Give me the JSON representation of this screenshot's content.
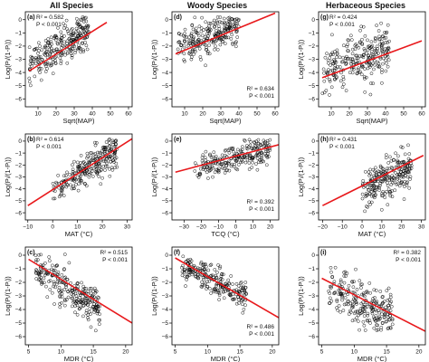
{
  "column_titles": [
    "All Species",
    "Woody Species",
    "Herbaceous Species"
  ],
  "chart_data": [
    {
      "id": "a",
      "type": "scatter",
      "panel_label": "(a)",
      "title": "All Species",
      "xlabel": "Sqrt(MAP)",
      "ylabel": "Log(Pᵢ/(1-Pᵢ))",
      "xlim": [
        3,
        62
      ],
      "ylim": [
        -6.6,
        0.6
      ],
      "xticks": [
        10,
        20,
        30,
        40,
        50,
        60
      ],
      "yticks": [
        0,
        -1,
        -2,
        -3,
        -4,
        -5,
        -6
      ],
      "stats": {
        "r2": "R² = 0.582",
        "p": "P < 0.001",
        "position": "top-left"
      },
      "fit": {
        "x": [
          5,
          48
        ],
        "y": [
          -3.9,
          -0.2
        ]
      },
      "cloud": {
        "x_range": [
          5,
          38
        ],
        "y_at_xmin": -3.6,
        "y_at_xmax": -0.6,
        "spread": 0.7,
        "floor": -6.0,
        "n": 260
      }
    },
    {
      "id": "d",
      "type": "scatter",
      "panel_label": "(d)",
      "title": "Woody Species",
      "xlabel": "Sqrt(MAP)",
      "ylabel": "Log(Pᵢ/(1-Pᵢ))",
      "xlim": [
        3,
        62
      ],
      "ylim": [
        -6.6,
        0.6
      ],
      "xticks": [
        10,
        20,
        30,
        40,
        50,
        60
      ],
      "yticks": [
        0,
        -1,
        -2,
        -3,
        -4,
        -5,
        -6
      ],
      "stats": {
        "r2": "R² = 0.634",
        "p": "P < 0.001",
        "position": "bottom-right"
      },
      "fit": {
        "x": [
          5,
          60
        ],
        "y": [
          -2.6,
          0.5
        ]
      },
      "cloud": {
        "x_range": [
          6,
          40
        ],
        "y_at_xmin": -2.3,
        "y_at_xmax": -0.4,
        "spread": 0.6,
        "floor": -4.0,
        "n": 240
      }
    },
    {
      "id": "g",
      "type": "scatter",
      "panel_label": "(g)",
      "title": "Herbaceous Species",
      "xlabel": "Sqrt(MAP)",
      "ylabel": "Log(Pᵢ/(1-Pᵢ))",
      "xlim": [
        3,
        62
      ],
      "ylim": [
        -6.6,
        0.6
      ],
      "xticks": [
        10,
        20,
        30,
        40,
        50,
        60
      ],
      "yticks": [
        0,
        -1,
        -2,
        -3,
        -4,
        -5,
        -6
      ],
      "stats": {
        "r2": "R² = 0.424",
        "p": "P < 0.001",
        "position": "top-left"
      },
      "fit": {
        "x": [
          5,
          60
        ],
        "y": [
          -4.4,
          -1.6
        ]
      },
      "cloud": {
        "x_range": [
          5,
          42
        ],
        "y_at_xmin": -4.2,
        "y_at_xmax": -2.2,
        "spread": 0.9,
        "floor": -5.8,
        "n": 260
      }
    },
    {
      "id": "b",
      "type": "scatter",
      "panel_label": "(b)",
      "title": "",
      "xlabel": "MAT (°C)",
      "ylabel": "Log(Pᵢ/(1-Pᵢ))",
      "xlim": [
        -11,
        32
      ],
      "ylim": [
        -6.6,
        0.6
      ],
      "xticks": [
        -10,
        0,
        10,
        20,
        30
      ],
      "yticks": [
        0,
        -1,
        -2,
        -3,
        -4,
        -5,
        -6
      ],
      "stats": {
        "r2": "R² = 0.614",
        "p": "P < 0.001",
        "position": "top-left"
      },
      "fit": {
        "x": [
          -10,
          32
        ],
        "y": [
          -5.4,
          0.2
        ]
      },
      "cloud": {
        "x_range": [
          0,
          26
        ],
        "y_at_xmin": -4.2,
        "y_at_xmax": -0.7,
        "spread": 0.7,
        "floor": -6.0,
        "n": 260
      }
    },
    {
      "id": "e",
      "type": "scatter",
      "panel_label": "(e)",
      "title": "",
      "xlabel": "TCQ (°C)",
      "ylabel": "Log(Pᵢ/(1-Pᵢ))",
      "xlim": [
        -37,
        25
      ],
      "ylim": [
        -6.6,
        0.6
      ],
      "xticks": [
        -30,
        -20,
        -10,
        0,
        10,
        20
      ],
      "yticks": [
        0,
        -1,
        -2,
        -3,
        -4,
        -5,
        -6
      ],
      "stats": {
        "r2": "R² = 0.392",
        "p": "P < 0.001",
        "position": "bottom-right"
      },
      "fit": {
        "x": [
          -35,
          25
        ],
        "y": [
          -2.6,
          -0.3
        ]
      },
      "cloud": {
        "x_range": [
          -24,
          20
        ],
        "y_at_xmin": -2.3,
        "y_at_xmax": -0.7,
        "spread": 0.55,
        "floor": -3.2,
        "n": 240
      }
    },
    {
      "id": "h",
      "type": "scatter",
      "panel_label": "(h)",
      "title": "",
      "xlabel": "MAT (°C)",
      "ylabel": "Log(Pᵢ/(1-Pᵢ))",
      "xlim": [
        -22,
        32
      ],
      "ylim": [
        -6.6,
        0.6
      ],
      "xticks": [
        -20,
        -10,
        0,
        10,
        20,
        30
      ],
      "yticks": [
        0,
        -1,
        -2,
        -3,
        -4,
        -5,
        -6
      ],
      "stats": {
        "r2": "R² = 0.431",
        "p": "P < 0.001",
        "position": "top-left"
      },
      "fit": {
        "x": [
          -20,
          31
        ],
        "y": [
          -5.4,
          -1.2
        ]
      },
      "cloud": {
        "x_range": [
          0,
          25
        ],
        "y_at_xmin": -4.0,
        "y_at_xmax": -2.2,
        "spread": 0.8,
        "floor": -6.0,
        "n": 240
      }
    },
    {
      "id": "c",
      "type": "scatter",
      "panel_label": "(c)",
      "title": "",
      "xlabel": "MDR (°C)",
      "ylabel": "Log(Pᵢ/(1-Pᵢ))",
      "xlim": [
        4.5,
        21
      ],
      "ylim": [
        -6.6,
        0.6
      ],
      "xticks": [
        5,
        10,
        15,
        20
      ],
      "yticks": [
        0,
        -1,
        -2,
        -3,
        -4,
        -5,
        -6
      ],
      "stats": {
        "r2": "R² = 0.515",
        "p": "P < 0.001",
        "position": "top-right"
      },
      "fit": {
        "x": [
          5,
          21
        ],
        "y": [
          -0.3,
          -5.0
        ]
      },
      "cloud": {
        "x_range": [
          6,
          16
        ],
        "y_at_xmin": -0.8,
        "y_at_xmax": -4.0,
        "spread": 0.7,
        "floor": -5.6,
        "n": 260
      }
    },
    {
      "id": "f",
      "type": "scatter",
      "panel_label": "(f)",
      "title": "",
      "xlabel": "MDR (°C)",
      "ylabel": "Log(Pᵢ/(1-Pᵢ))",
      "xlim": [
        4.5,
        21
      ],
      "ylim": [
        -6.6,
        0.6
      ],
      "xticks": [
        5,
        10,
        15,
        20
      ],
      "yticks": [
        0,
        -1,
        -2,
        -3,
        -4,
        -5,
        -6
      ],
      "stats": {
        "r2": "R² = 0.486",
        "p": "P < 0.001",
        "position": "bottom-right"
      },
      "fit": {
        "x": [
          5,
          21
        ],
        "y": [
          -0.2,
          -4.6
        ]
      },
      "cloud": {
        "x_range": [
          6,
          16
        ],
        "y_at_xmin": -0.8,
        "y_at_xmax": -3.1,
        "spread": 0.55,
        "floor": -4.5,
        "n": 240
      }
    },
    {
      "id": "i",
      "type": "scatter",
      "panel_label": "(i)",
      "title": "",
      "xlabel": "MDR (°C)",
      "ylabel": "Log(Pᵢ/(1-Pᵢ))",
      "xlim": [
        4.5,
        21
      ],
      "ylim": [
        -6.6,
        0.6
      ],
      "xticks": [
        5,
        10,
        15,
        20
      ],
      "yticks": [
        0,
        -1,
        -2,
        -3,
        -4,
        -5,
        -6
      ],
      "stats": {
        "r2": "R² = 0.382",
        "p": "P < 0.001",
        "position": "top-right"
      },
      "fit": {
        "x": [
          5,
          21
        ],
        "y": [
          -1.7,
          -5.6
        ]
      },
      "cloud": {
        "x_range": [
          6,
          16
        ],
        "y_at_xmin": -2.3,
        "y_at_xmax": -4.6,
        "spread": 0.8,
        "floor": -5.6,
        "n": 240
      }
    }
  ],
  "colors": {
    "fit_line": "#e8191c",
    "points": "#000000",
    "axes": "#000000"
  }
}
